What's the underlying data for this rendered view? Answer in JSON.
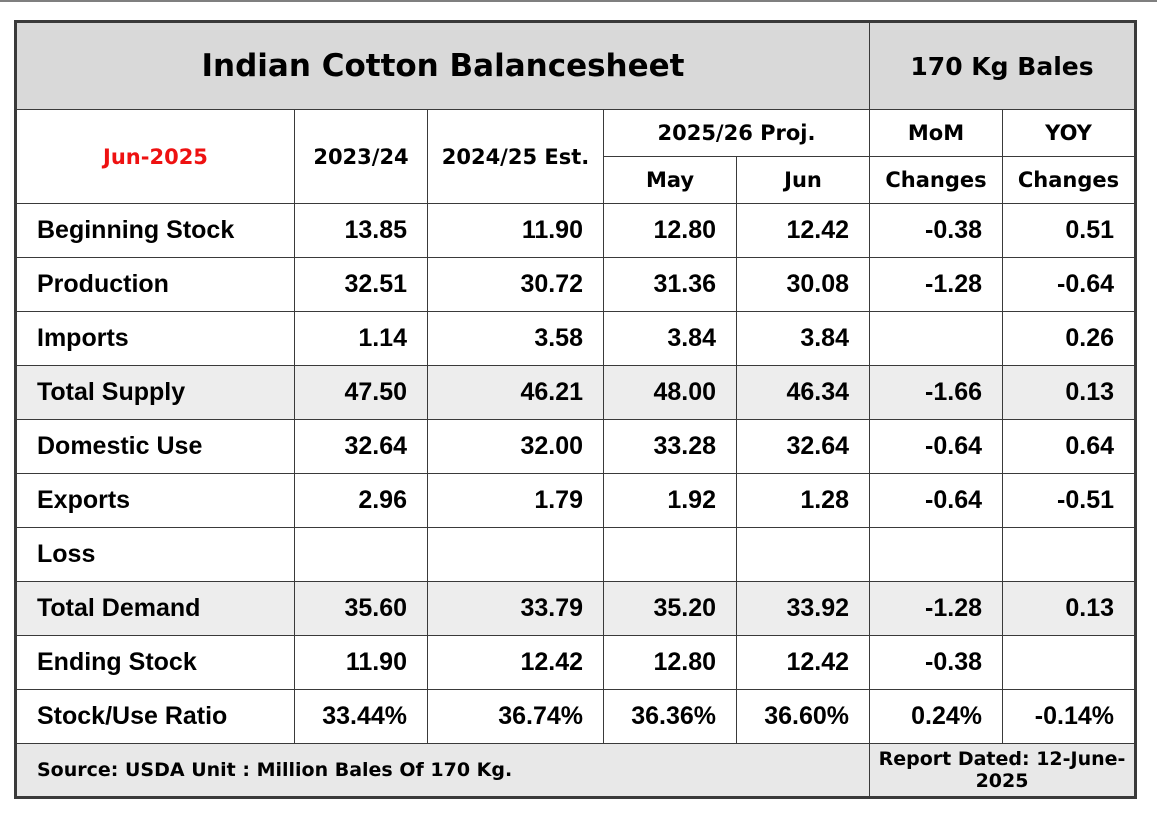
{
  "header": {
    "title": "Indian Cotton Balancesheet",
    "unit": "170 Kg Bales",
    "report_month": "Jun-2025",
    "col_2023": "2023/24",
    "col_2024": "2024/25 Est.",
    "col_proj": "2025/26 Proj.",
    "col_may": "May",
    "col_jun": "Jun",
    "col_mom_1": "MoM",
    "col_mom_2": "Changes",
    "col_yoy_1": "YOY",
    "col_yoy_2": "Changes"
  },
  "footer": {
    "source": "Source: USDA  Unit : Million Bales Of 170 Kg.",
    "report_date": "Report Dated: 12-June-2025"
  },
  "colors": {
    "title_bg": "#d9d9d9",
    "month_red": "#ee1111",
    "shaded_row": "#ededed"
  },
  "chart_data": {
    "type": "table",
    "title": "Indian Cotton Balancesheet",
    "columns": [
      "2023/24",
      "2024/25 Est.",
      "May",
      "Jun",
      "MoM Changes",
      "YOY Changes"
    ],
    "rows": [
      {
        "label": "Beginning Stock",
        "values": [
          "13.85",
          "11.90",
          "12.80",
          "12.42",
          "-0.38",
          "0.51"
        ]
      },
      {
        "label": "Production",
        "values": [
          "32.51",
          "30.72",
          "31.36",
          "30.08",
          "-1.28",
          "-0.64"
        ]
      },
      {
        "label": "Imports",
        "values": [
          "1.14",
          "3.58",
          "3.84",
          "3.84",
          "",
          "0.26"
        ]
      },
      {
        "label": "Total Supply",
        "values": [
          "47.50",
          "46.21",
          "48.00",
          "46.34",
          "-1.66",
          "0.13"
        ]
      },
      {
        "label": "Domestic Use",
        "values": [
          "32.64",
          "32.00",
          "33.28",
          "32.64",
          "-0.64",
          "0.64"
        ]
      },
      {
        "label": "Exports",
        "values": [
          "2.96",
          "1.79",
          "1.92",
          "1.28",
          "-0.64",
          "-0.51"
        ]
      },
      {
        "label": "Loss",
        "values": [
          "",
          "",
          "",
          "",
          "",
          ""
        ]
      },
      {
        "label": "Total Demand",
        "values": [
          "35.60",
          "33.79",
          "35.20",
          "33.92",
          "-1.28",
          "0.13"
        ]
      },
      {
        "label": "Ending Stock",
        "values": [
          "11.90",
          "12.42",
          "12.80",
          "12.42",
          "-0.38",
          ""
        ]
      },
      {
        "label": "Stock/Use Ratio",
        "values": [
          "33.44%",
          "36.74%",
          "36.36%",
          "36.60%",
          "0.24%",
          "-0.14%"
        ]
      }
    ]
  }
}
